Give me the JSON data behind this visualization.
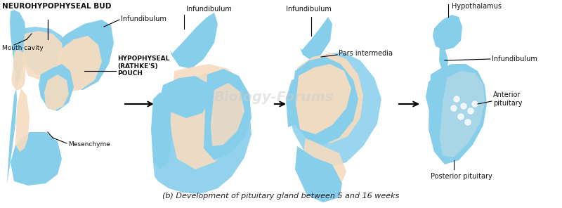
{
  "title": "(b) Development of pituitary gland between 5 and 16 weeks",
  "header": "NEUROHYPOPHYSEAL BUD",
  "bg_color": "#FFFFFF",
  "blue_light": "#add8e6",
  "blue_mid": "#87CEEB",
  "blue_dark": "#5599bb",
  "blue_deeper": "#4a90b8",
  "orange_light": "#f5dcc0",
  "orange_mid": "#e8b896",
  "orange_dark": "#d4956a",
  "text_color": "#222222",
  "label_color": "#111111",
  "watermark": "Biology-Forums",
  "labels": {
    "header": "NEUROHYPOPHYSEAL BUD",
    "infundibulum": "Infundibulum",
    "pars_intermedia": "Pars intermedia",
    "hypothalamus": "Hypothalamus",
    "hypophyseal": "HYPOPHYSEAL\n(RATHKE'S)\nPOUCH",
    "mouth_cavity": "Mouth cavity",
    "mesenchyme": "Mesenchyme",
    "anterior_pituitary": "Anterior\npituitary",
    "posterior_pituitary": "Posterior pituitary"
  }
}
